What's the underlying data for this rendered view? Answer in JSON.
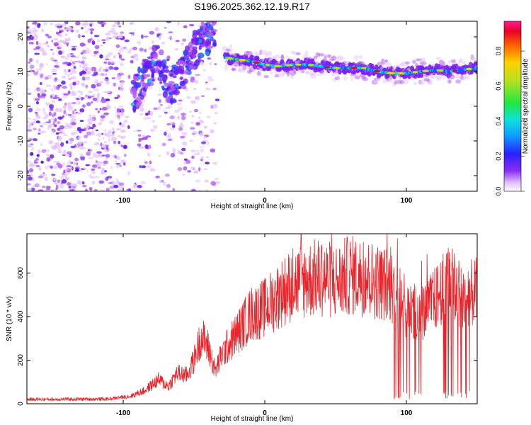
{
  "title": "S196.2025.362.12.19.R17",
  "colors": {
    "spectrogram_cmap": [
      "#ffffff",
      "#e6c8ff",
      "#b05cf0",
      "#7a1ff0",
      "#4a22f0",
      "#1a55ff",
      "#10a8ff",
      "#10e0d0",
      "#20e840",
      "#b8e020",
      "#ffd000",
      "#ff6a00",
      "#e8002a",
      "#ff1a8c"
    ],
    "snr_line": "#e8242a"
  },
  "chart_data": [
    {
      "type": "heatmap",
      "name": "spectrogram",
      "xlabel": "Height of straight line (km)",
      "ylabel": "Frequency (Hz)",
      "xlim": [
        -168,
        150
      ],
      "ylim": [
        -24.5,
        24.5
      ],
      "xticks": [
        -100,
        0,
        100
      ],
      "yticks": [
        20,
        10,
        0,
        -10,
        -20
      ],
      "colorbar": {
        "label": "Normalized spectral amplitude",
        "range": [
          0,
          0.97
        ],
        "ticks": [
          0.0,
          0.2,
          0.4,
          0.6,
          0.8
        ]
      },
      "features": {
        "noise_region_x": [
          -168,
          -33
        ],
        "dense_noise_region_x": [
          -168,
          -100
        ],
        "rising_trace": [
          [
            -93,
            3
          ],
          [
            -85,
            8
          ],
          [
            -75,
            14
          ],
          [
            -68,
            4
          ],
          [
            -60,
            9
          ],
          [
            -52,
            15
          ],
          [
            -44,
            19
          ],
          [
            -35,
            22
          ]
        ],
        "carrier_line": [
          [
            -28,
            14
          ],
          [
            -20,
            13.5
          ],
          [
            -10,
            13
          ],
          [
            0,
            12
          ],
          [
            10,
            11.5
          ],
          [
            20,
            12
          ],
          [
            30,
            12
          ],
          [
            40,
            11.5
          ],
          [
            50,
            11
          ],
          [
            60,
            11
          ],
          [
            70,
            11
          ],
          [
            80,
            10
          ],
          [
            90,
            9.5
          ],
          [
            100,
            9.5
          ],
          [
            110,
            10
          ],
          [
            120,
            10.5
          ],
          [
            130,
            10
          ],
          [
            140,
            10.5
          ],
          [
            150,
            11
          ]
        ]
      }
    },
    {
      "type": "line",
      "name": "snr",
      "xlabel": "Height of straight line (km)",
      "ylabel": "SNR (10 * v/v)",
      "xlim": [
        -168,
        150
      ],
      "ylim": [
        0,
        780
      ],
      "xticks": [
        -100,
        0,
        100
      ],
      "yticks": [
        0,
        200,
        400,
        600
      ],
      "envelope": [
        [
          -168,
          20
        ],
        [
          -110,
          22
        ],
        [
          -95,
          35
        ],
        [
          -85,
          60
        ],
        [
          -75,
          110
        ],
        [
          -68,
          80
        ],
        [
          -62,
          140
        ],
        [
          -55,
          130
        ],
        [
          -50,
          200
        ],
        [
          -45,
          310
        ],
        [
          -40,
          260
        ],
        [
          -35,
          150
        ],
        [
          -30,
          230
        ],
        [
          -20,
          320
        ],
        [
          -10,
          410
        ],
        [
          0,
          440
        ],
        [
          10,
          500
        ],
        [
          20,
          550
        ],
        [
          30,
          570
        ],
        [
          40,
          580
        ],
        [
          50,
          560
        ],
        [
          60,
          590
        ],
        [
          70,
          580
        ],
        [
          80,
          560
        ],
        [
          90,
          540
        ],
        [
          95,
          480
        ],
        [
          100,
          440
        ],
        [
          105,
          420
        ],
        [
          112,
          420
        ],
        [
          118,
          460
        ],
        [
          125,
          520
        ],
        [
          130,
          560
        ],
        [
          135,
          520
        ],
        [
          140,
          500
        ],
        [
          150,
          510
        ]
      ],
      "dropout_regions_x": [
        [
          91,
          112
        ],
        [
          125,
          146
        ]
      ]
    }
  ]
}
